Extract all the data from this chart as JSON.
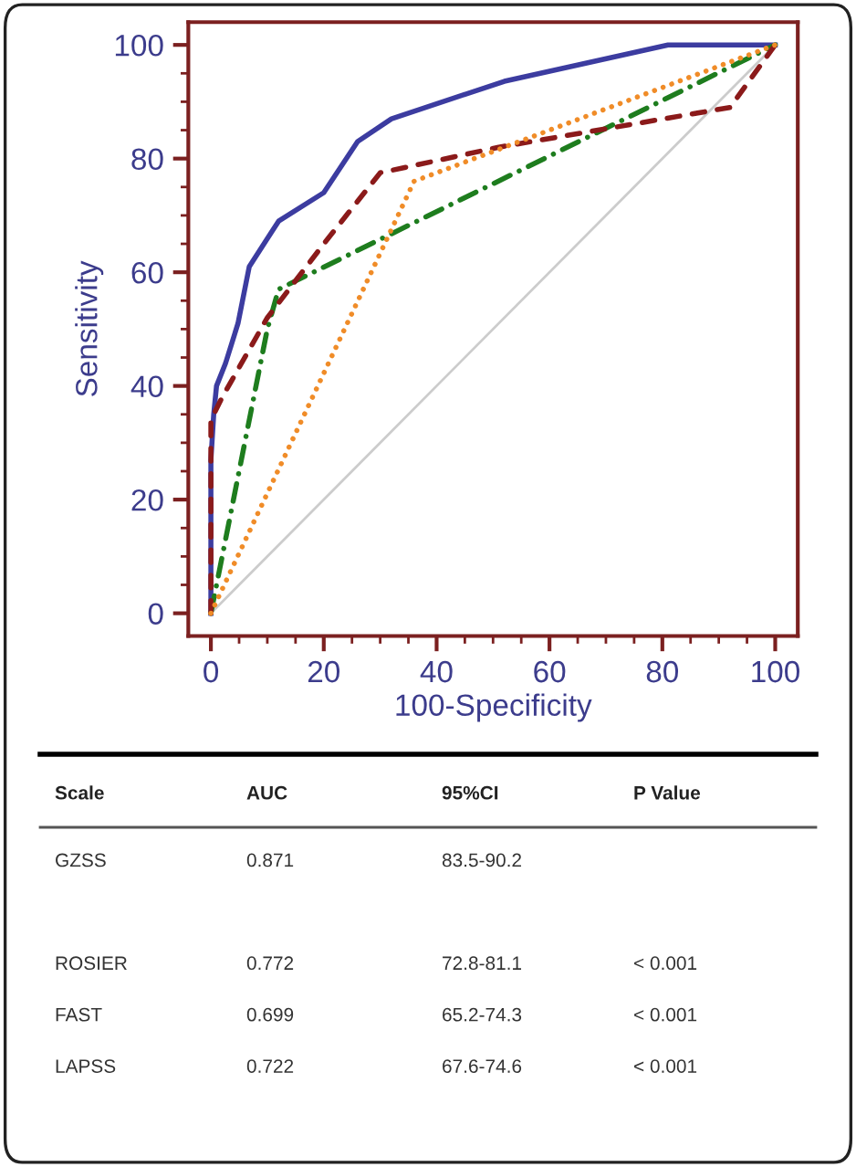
{
  "chart_data": {
    "type": "line",
    "xlabel": "100-Specificity",
    "ylabel": "Sensitivity",
    "xlim": [
      -4,
      104
    ],
    "ylim": [
      -4,
      104
    ],
    "xticks": [
      0,
      20,
      40,
      60,
      80,
      100
    ],
    "yticks": [
      0,
      20,
      40,
      60,
      80,
      100
    ],
    "grid": false,
    "marker": "none",
    "series": [
      {
        "color": "#cccccc",
        "line_style": "solid",
        "x": [
          0,
          100
        ],
        "values": [
          0,
          100
        ]
      },
      {
        "color": "#f08c28",
        "line_style": "dotted",
        "x": [
          0,
          36,
          100
        ],
        "values": [
          0,
          76,
          100
        ]
      },
      {
        "color": "#1e7d1e",
        "line_style": "dashdot",
        "x": [
          0,
          10,
          12,
          100
        ],
        "values": [
          0,
          50,
          57,
          100
        ]
      },
      {
        "color": "#8b1a1a",
        "line_style": "dashed",
        "x": [
          0,
          0,
          0,
          2,
          10,
          20,
          30,
          51,
          92,
          100
        ],
        "values": [
          0,
          28,
          34,
          38,
          52,
          65,
          77.5,
          82,
          89,
          100
        ]
      },
      {
        "color": "#3c3ca0",
        "line_style": "solid",
        "x": [
          0,
          0,
          0.5,
          1,
          2.6,
          4.8,
          6.8,
          12,
          20,
          26,
          32,
          52,
          81,
          100
        ],
        "values": [
          0,
          27,
          35,
          40,
          44,
          51,
          61,
          69,
          74,
          83,
          87,
          93.6,
          100,
          100
        ]
      }
    ],
    "annotations": [
      "Scale",
      "AUC",
      "95%CI",
      "P Value",
      "GZSS\n\nROSIER\nFAST\nLAPSS",
      "0.871\n\n0.772\n0.699\n0.722",
      "83.5-90.2\n\n72.8-81.1\n65.2-74.3\n67.6-74.6",
      "\n\n< 0.001\n< 0.001\n< 0.001"
    ]
  }
}
